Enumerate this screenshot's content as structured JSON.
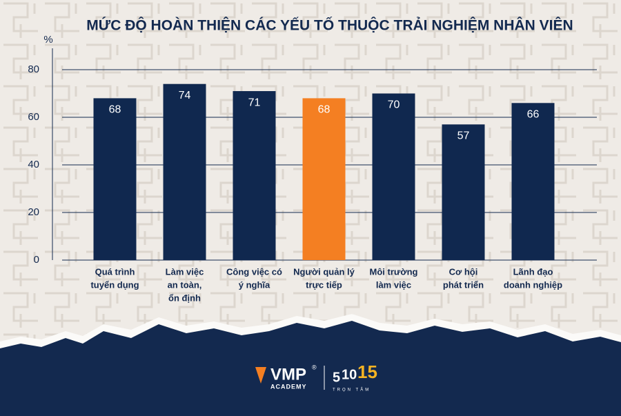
{
  "chart_data": {
    "type": "bar",
    "title": "MỨC ĐỘ HOÀN THIỆN CÁC YẾU TỐ THUỘC TRẢI NGHIỆM NHÂN VIÊN",
    "y_label": "%",
    "categories": [
      [
        "Quá trình",
        "tuyển dụng"
      ],
      [
        "Làm việc",
        "an toàn,",
        "ổn định"
      ],
      [
        "Công việc có",
        "ý nghĩa"
      ],
      [
        "Người quản lý",
        "trực tiếp"
      ],
      [
        "Môi trường",
        "làm việc"
      ],
      [
        "Cơ hội",
        "phát triển"
      ],
      [
        "Lãnh đạo",
        "doanh nghiệp"
      ]
    ],
    "values": [
      68,
      74,
      71,
      68,
      70,
      57,
      66
    ],
    "colors": [
      "#10284f",
      "#10284f",
      "#10284f",
      "#f47f22",
      "#10284f",
      "#10284f",
      "#10284f"
    ],
    "ylim": [
      0,
      80
    ],
    "yticks": [
      0,
      20,
      40,
      60,
      80
    ],
    "grid": true
  },
  "footer": {
    "brand": "VMP",
    "registered": "®",
    "sub": "ACADEMY",
    "numbers": [
      "5",
      "10",
      "15"
    ],
    "tagline": "TRỌN TÂM"
  }
}
